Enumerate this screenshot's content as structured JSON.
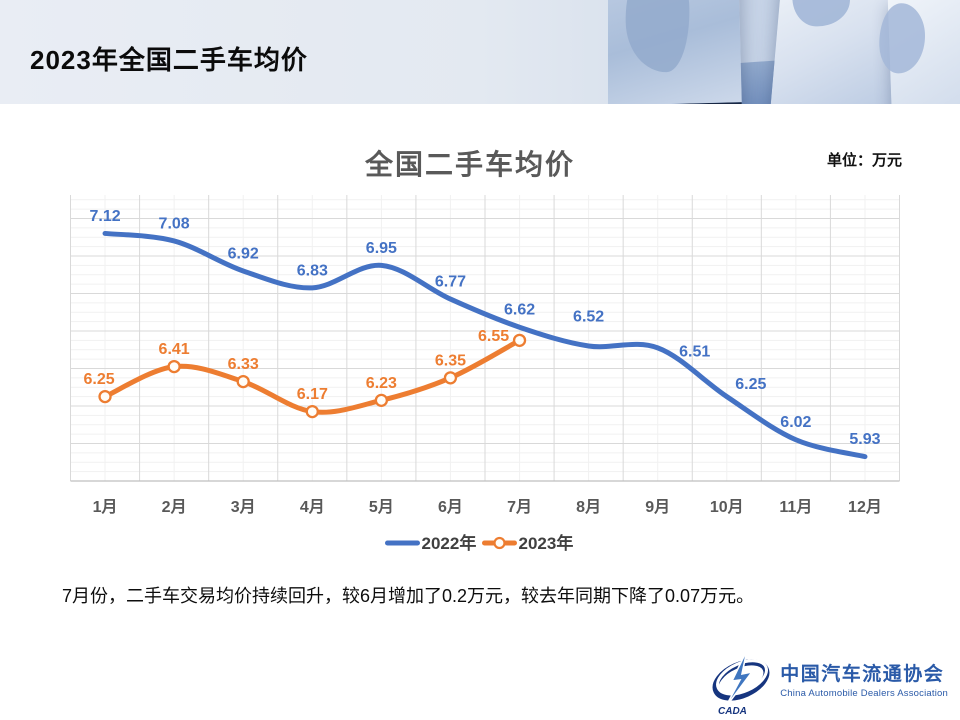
{
  "header": {
    "title": "2023年全国二手车均价"
  },
  "chart": {
    "title": "全国二手车均价",
    "unit_label": "单位：万元"
  },
  "chart_data": {
    "type": "line",
    "title": "全国二手车均价",
    "unit": "万元",
    "categories": [
      "1月",
      "2月",
      "3月",
      "4月",
      "5月",
      "6月",
      "7月",
      "8月",
      "9月",
      "10月",
      "11月",
      "12月"
    ],
    "series": [
      {
        "name": "2022年",
        "color": "#4472C4",
        "marker": false,
        "values": [
          7.12,
          7.08,
          6.92,
          6.83,
          6.95,
          6.77,
          6.62,
          6.52,
          6.51,
          6.25,
          6.02,
          5.93
        ]
      },
      {
        "name": "2023年",
        "color": "#ED7D31",
        "marker": true,
        "values": [
          6.25,
          6.41,
          6.33,
          6.17,
          6.23,
          6.35,
          6.55
        ]
      }
    ],
    "ylim": [
      5.8,
      7.325
    ],
    "grid": true,
    "legend_position": "bottom",
    "colors": {
      "axis_text": "#595959",
      "grid_major": "#D9D9D9",
      "grid_minor": "#F1F1F1",
      "legend_text": "#404040"
    }
  },
  "summary": {
    "text": "7月份，二手车交易均价持续回升，较6月增加了0.2万元，较去年同期下降了0.07万元。"
  },
  "footer": {
    "org_name_zh": "中国汽车流通协会",
    "org_name_en": "China Automobile Dealers Association",
    "logo_acronym": "CADA"
  }
}
